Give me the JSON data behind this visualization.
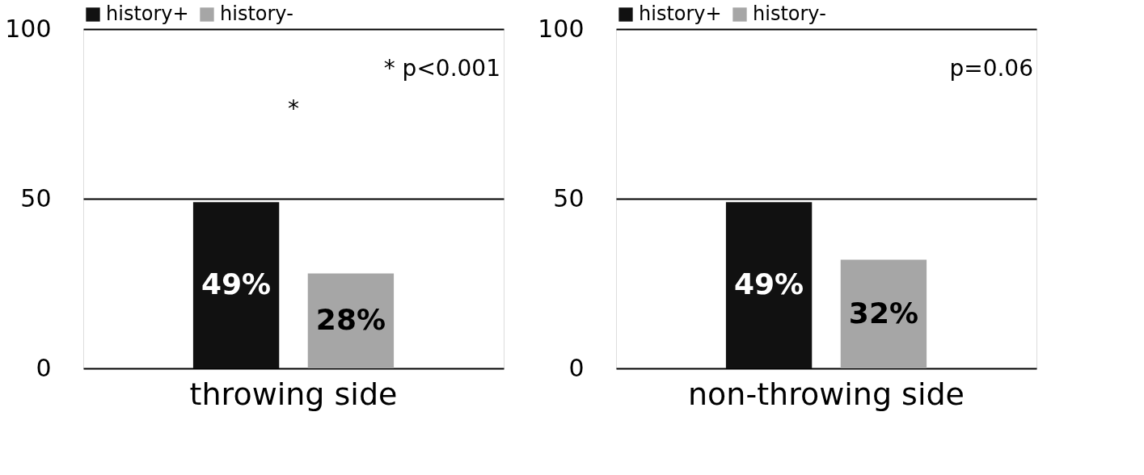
{
  "chart_data": [
    {
      "type": "bar",
      "categories": [
        "throwing side"
      ],
      "series": [
        {
          "name": "history+",
          "color": "#111111",
          "values": [
            49
          ],
          "value_labels": [
            "49%"
          ]
        },
        {
          "name": "history-",
          "color": "#a6a6a6",
          "values": [
            28
          ],
          "value_labels": [
            "28%"
          ]
        }
      ],
      "ylim": [
        0,
        100
      ],
      "yticks": [
        0,
        50,
        100
      ],
      "grid": "y",
      "legend": "top left",
      "annotations": [
        "* p<0.001",
        "*"
      ]
    },
    {
      "type": "bar",
      "categories": [
        "non-throwing side"
      ],
      "series": [
        {
          "name": "history+",
          "color": "#111111",
          "values": [
            49
          ],
          "value_labels": [
            "49%"
          ]
        },
        {
          "name": "history-",
          "color": "#a6a6a6",
          "values": [
            32
          ],
          "value_labels": [
            "32%"
          ]
        }
      ],
      "ylim": [
        0,
        100
      ],
      "yticks": [
        0,
        50,
        100
      ],
      "grid": "y",
      "legend": "top left",
      "annotations": [
        "p=0.06"
      ]
    }
  ]
}
